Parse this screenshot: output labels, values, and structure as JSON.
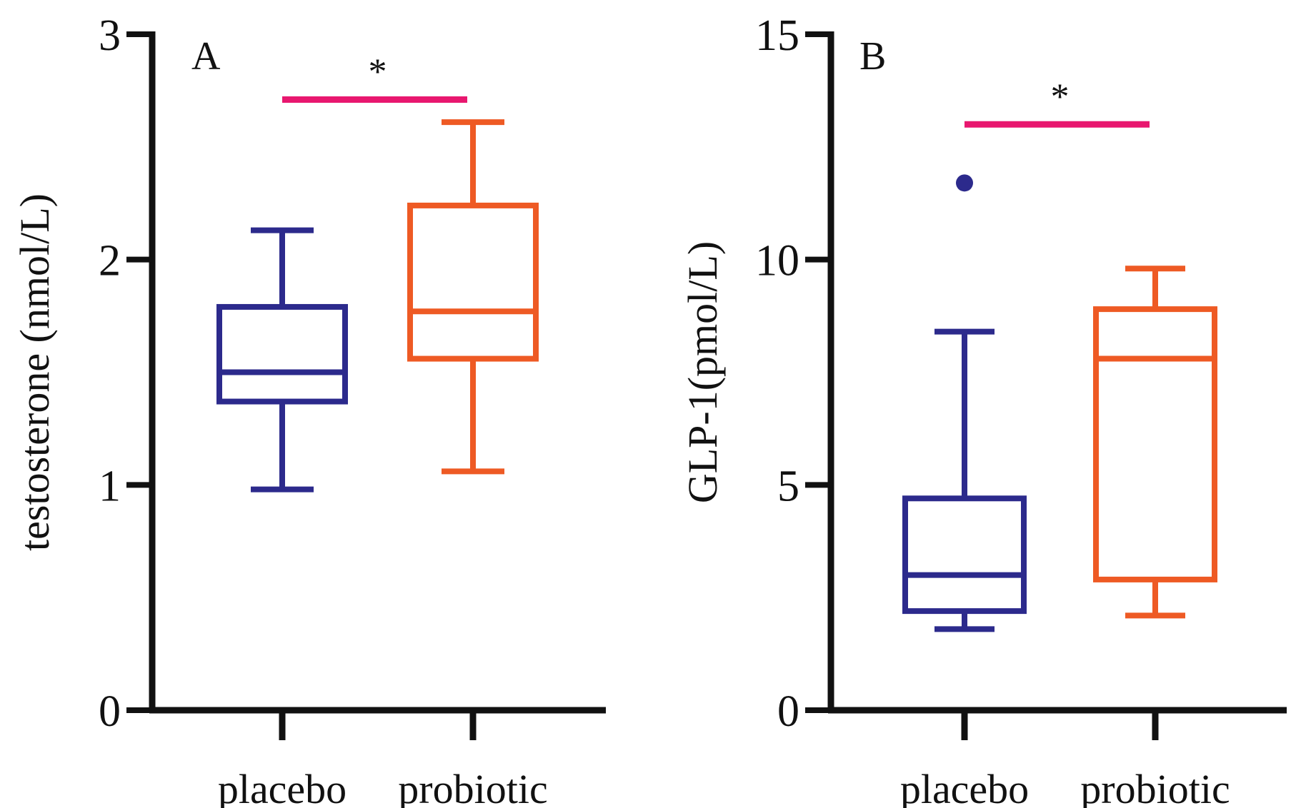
{
  "chart_data": [
    {
      "type": "box",
      "panel_label": "A",
      "ylabel": "testosterone (nmol/L)",
      "ylim": [
        0,
        3
      ],
      "yticks": [
        0,
        1,
        2,
        3
      ],
      "categories": [
        "placebo",
        "probiotic"
      ],
      "colors": [
        "#2c2a8c",
        "#ee5a24"
      ],
      "boxes": [
        {
          "category": "placebo",
          "min": 0.98,
          "q1": 1.37,
          "median": 1.5,
          "q3": 1.79,
          "max": 2.13,
          "outliers": []
        },
        {
          "category": "probiotic",
          "min": 1.06,
          "q1": 1.56,
          "median": 1.77,
          "q3": 2.24,
          "max": 2.61,
          "outliers": []
        }
      ],
      "significance": {
        "label": "*",
        "y": 2.71,
        "color": "#e8176f"
      }
    },
    {
      "type": "box",
      "panel_label": "B",
      "ylabel": "GLP-1(pmol/L)",
      "ylim": [
        0,
        15
      ],
      "yticks": [
        0,
        5,
        10,
        15
      ],
      "categories": [
        "placebo",
        "probiotic"
      ],
      "colors": [
        "#2c2a8c",
        "#ee5a24"
      ],
      "boxes": [
        {
          "category": "placebo",
          "min": 1.8,
          "q1": 2.2,
          "median": 3.0,
          "q3": 4.7,
          "max": 8.4,
          "outliers": [
            11.7
          ]
        },
        {
          "category": "probiotic",
          "min": 2.1,
          "q1": 2.9,
          "median": 7.8,
          "q3": 8.9,
          "max": 9.8,
          "outliers": []
        }
      ],
      "significance": {
        "label": "*",
        "y": 13.0,
        "color": "#e8176f"
      }
    }
  ]
}
